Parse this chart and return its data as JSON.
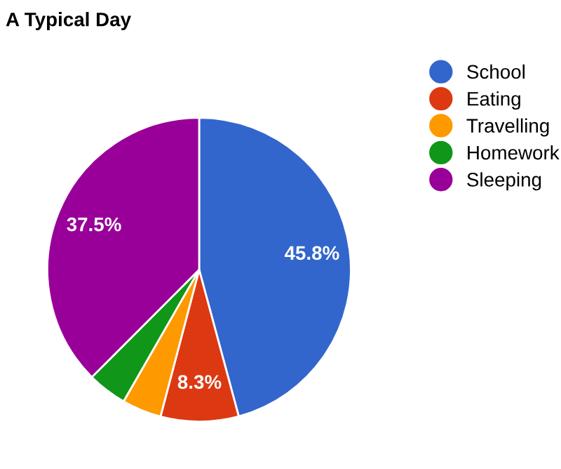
{
  "chart_data": {
    "type": "pie",
    "title": "A Typical Day",
    "categories": [
      "School",
      "Eating",
      "Travelling",
      "Homework",
      "Sleeping"
    ],
    "values": [
      45.8,
      8.3,
      4.2,
      4.2,
      37.5
    ],
    "value_labels": [
      "45.8%",
      "8.3%",
      null,
      null,
      "37.5%"
    ],
    "colors": [
      "#3366cc",
      "#dc3912",
      "#ff9900",
      "#109618",
      "#990099"
    ],
    "legend": "right"
  }
}
